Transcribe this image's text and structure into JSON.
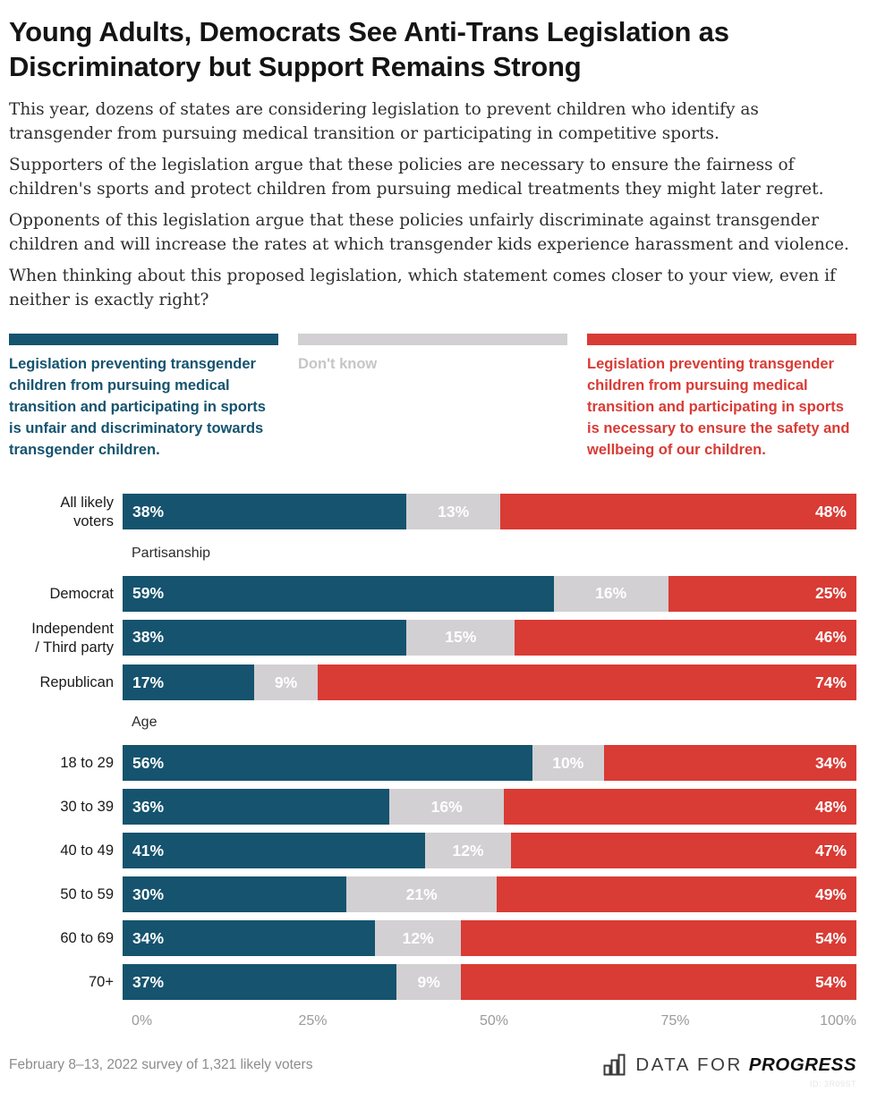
{
  "title": "Young Adults, Democrats See Anti-Trans Legislation as Discriminatory but Support Remains Strong",
  "paragraphs": [
    "This year, dozens of states are considering legislation to prevent children who identify as transgender from pursuing medical transition or participating in competitive sports.",
    "Supporters of the legislation argue that these policies are necessary to ensure the fairness of children's sports and protect children from pursuing medical treatments they might later regret.",
    "Opponents of this legislation argue that these policies unfairly discriminate against transgender children and will increase the rates at which transgender kids experience harassment and violence.",
    "When thinking about this proposed legislation, which statement comes closer to your view, even if neither is exactly right?"
  ],
  "legend": [
    {
      "label": "Legislation preventing transgender children from pursuing medical transition and participating in sports is unfair and discriminatory towards transgender children.",
      "color": "#15536e"
    },
    {
      "label": "Don't know",
      "color": "#d2d0d2"
    },
    {
      "label": "Legislation preventing transgender children from pursuing medical transition and participating in sports is necessary to ensure the safety and wellbeing of our children.",
      "color": "#d93b35"
    }
  ],
  "chart_data": {
    "type": "bar",
    "stacked": true,
    "orientation": "horizontal",
    "xlim": [
      0,
      100
    ],
    "x_ticks": [
      "0%",
      "25%",
      "50%",
      "75%",
      "100%"
    ],
    "grid": false,
    "legend_position": "top",
    "colors": [
      "#15536e",
      "#d2d0d2",
      "#d93b35"
    ],
    "series_names": [
      "Unfair and discriminatory towards transgender children",
      "Don't know",
      "Necessary to ensure the safety and wellbeing of our children"
    ],
    "groups": [
      {
        "header": null,
        "rows": [
          {
            "label": "All likely\nvoters",
            "values": [
              38,
              13,
              48
            ]
          }
        ]
      },
      {
        "header": "Partisanship",
        "rows": [
          {
            "label": "Democrat",
            "values": [
              59,
              16,
              25
            ]
          },
          {
            "label": "Independent\n/ Third party",
            "values": [
              38,
              15,
              46
            ]
          },
          {
            "label": "Republican",
            "values": [
              17,
              9,
              74
            ]
          }
        ]
      },
      {
        "header": "Age",
        "rows": [
          {
            "label": "18 to 29",
            "values": [
              56,
              10,
              34
            ]
          },
          {
            "label": "30 to 39",
            "values": [
              36,
              16,
              48
            ]
          },
          {
            "label": "40 to 49",
            "values": [
              41,
              12,
              47
            ]
          },
          {
            "label": "50 to 59",
            "values": [
              30,
              21,
              49
            ]
          },
          {
            "label": "60 to 69",
            "values": [
              34,
              12,
              54
            ]
          },
          {
            "label": "70+",
            "values": [
              37,
              9,
              54
            ]
          }
        ]
      }
    ]
  },
  "footer": {
    "source": "February 8–13, 2022 survey of 1,321 likely voters",
    "logo_regular": "DATA FOR",
    "logo_bold": "PROGRESS",
    "watermark": "ID: 3R09ST"
  }
}
